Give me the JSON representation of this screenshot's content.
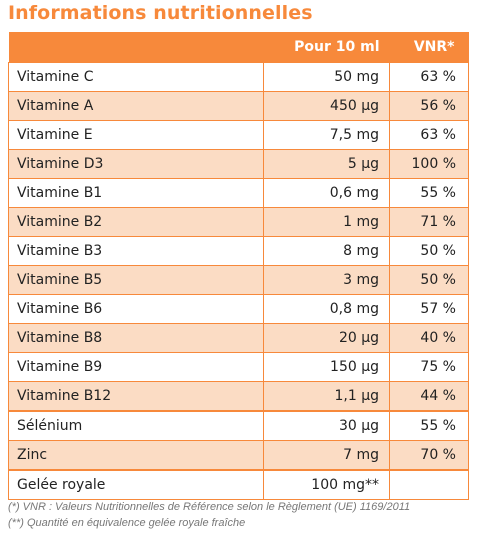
{
  "title": "Informations nutritionnelles",
  "table": {
    "headers": {
      "col1": "",
      "col2": "Pour 10 ml",
      "col3": "VNR*"
    },
    "rows": [
      {
        "name": "Vitamine C",
        "qty": "50 mg",
        "vnr": "63 %",
        "shade": "white"
      },
      {
        "name": "Vitamine A",
        "qty": "450 µg",
        "vnr": "56 %",
        "shade": "alt"
      },
      {
        "name": "Vitamine E",
        "qty": "7,5 mg",
        "vnr": "63 %",
        "shade": "white"
      },
      {
        "name": "Vitamine D3",
        "qty": "5 µg",
        "vnr": "100 %",
        "shade": "alt"
      },
      {
        "name": "Vitamine B1",
        "qty": "0,6 mg",
        "vnr": "55 %",
        "shade": "white"
      },
      {
        "name": "Vitamine B2",
        "qty": "1 mg",
        "vnr": "71 %",
        "shade": "alt"
      },
      {
        "name": "Vitamine B3",
        "qty": "8 mg",
        "vnr": "50 %",
        "shade": "white"
      },
      {
        "name": "Vitamine B5",
        "qty": "3 mg",
        "vnr": "50 %",
        "shade": "alt"
      },
      {
        "name": "Vitamine B6",
        "qty": "0,8 mg",
        "vnr": "57 %",
        "shade": "white"
      },
      {
        "name": "Vitamine B8",
        "qty": "20 µg",
        "vnr": "40 %",
        "shade": "alt"
      },
      {
        "name": "Vitamine B9",
        "qty": "150 µg",
        "vnr": "75 %",
        "shade": "white"
      },
      {
        "name": "Vitamine B12",
        "qty": "1,1 µg",
        "vnr": "44 %",
        "shade": "alt"
      },
      {
        "name": "Sélénium",
        "qty": "30 µg",
        "vnr": "55 %",
        "shade": "white"
      },
      {
        "name": "Zinc",
        "qty": "7 mg",
        "vnr": "70 %",
        "shade": "alt"
      },
      {
        "name": "Gelée royale",
        "qty": "100 mg**",
        "vnr": "",
        "shade": "white"
      }
    ]
  },
  "footnotes": [
    "(*) VNR : Valeurs Nutritionnelles de Référence selon le Règlement (UE) 1169/2011",
    "(**) Quantité en équivalence gelée royale fraîche"
  ],
  "colors": {
    "accent": "#f7893b",
    "row_alt": "#fbdcc4"
  }
}
